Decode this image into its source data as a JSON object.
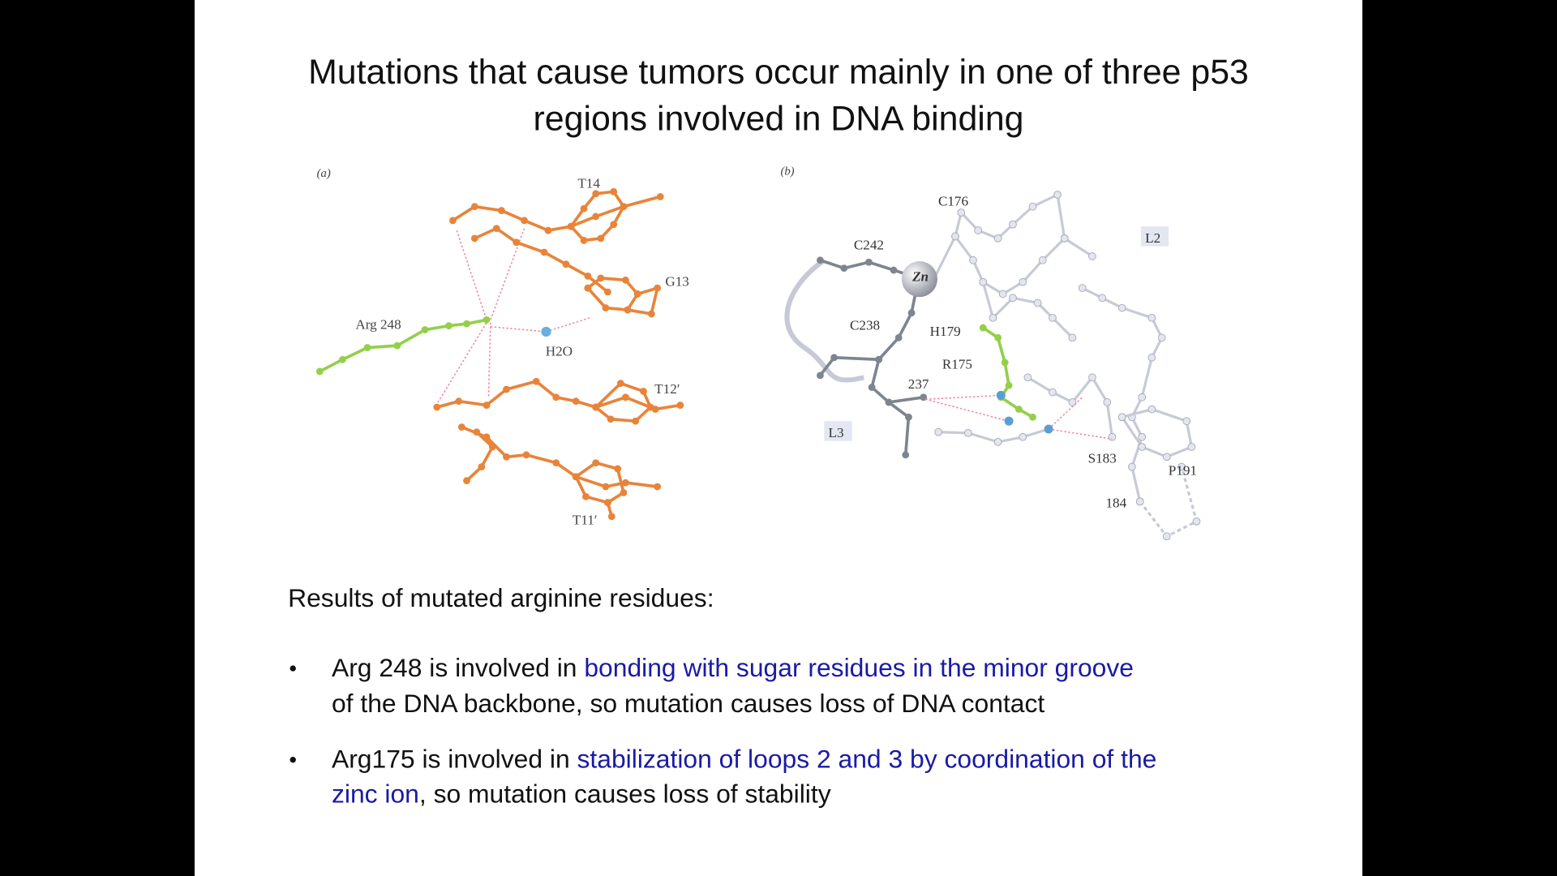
{
  "slide": {
    "title": [
      "Mutations that cause tumors occur mainly in one of three p53",
      "regions involved in DNA binding"
    ],
    "figure": {
      "panel_a": {
        "label": "(a)",
        "labels": [
          "T14",
          "G13",
          "Arg 248",
          "H2O",
          "T12′",
          "T11′"
        ]
      },
      "panel_b": {
        "label": "(b)",
        "labels": [
          "C176",
          "L2",
          "C242",
          "Zn",
          "C238",
          "H179",
          "R175",
          "237",
          "L3",
          "S183",
          "P191",
          "184"
        ]
      }
    },
    "heading": "Results of mutated arginine residues:",
    "bullets": [
      {
        "lines": [
          [
            {
              "text": "Arg 248 is involved in ",
              "color": "#111111"
            },
            {
              "text": "bonding with sugar residues in the minor groove",
              "color": "#1a1aa6"
            }
          ],
          [
            {
              "text": "of the DNA backbone, so mutation causes loss of DNA contact",
              "color": "#111111"
            }
          ]
        ]
      },
      {
        "lines": [
          [
            {
              "text": "Arg175 is involved in ",
              "color": "#111111"
            },
            {
              "text": "stabilization of loops 2 and 3 by coordination of the",
              "color": "#1a1aa6"
            }
          ],
          [
            {
              "text": "zinc ion",
              "color": "#1a1aa6"
            },
            {
              "text": ", so mutation causes loss of stability",
              "color": "#111111"
            }
          ]
        ]
      }
    ]
  }
}
